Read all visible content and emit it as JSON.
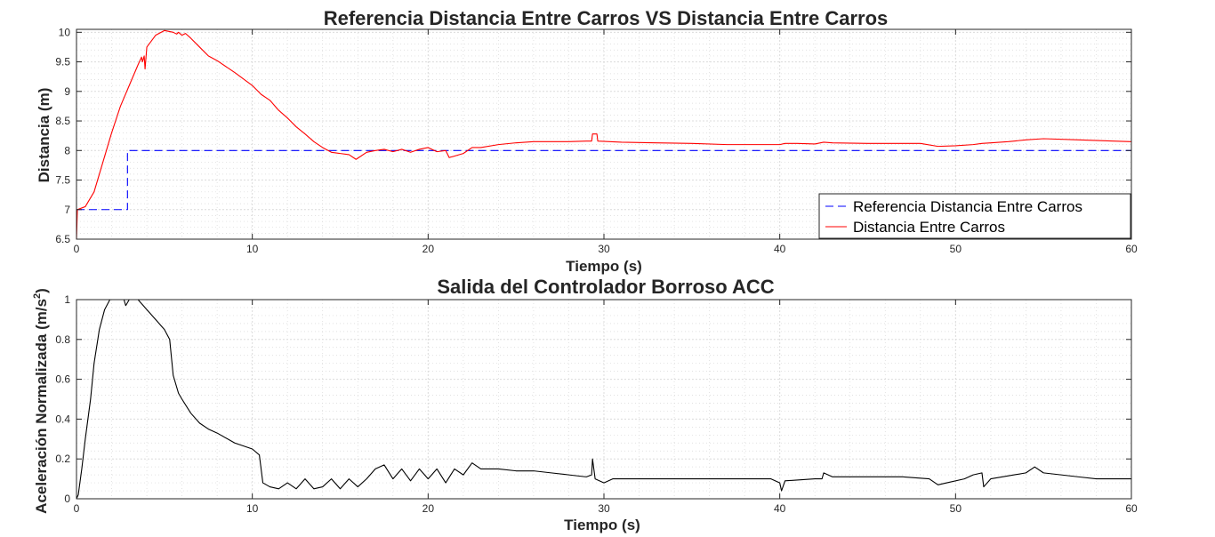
{
  "figure": {
    "background": "#ffffff",
    "axes_color": "#262626",
    "grid_color": "#dcdcdc",
    "minor_grid_color": "#d8d8d8"
  },
  "chart_data": [
    {
      "type": "line",
      "title": "Referencia Distancia Entre Carros VS Distancia Entre Carros",
      "xlabel": "Tiempo (s)",
      "ylabel": "Distancia (m)",
      "xlim": [
        0,
        60
      ],
      "ylim": [
        6.5,
        10.05
      ],
      "xticks": [
        0,
        10,
        20,
        30,
        40,
        50,
        60
      ],
      "yticks": [
        6.5,
        7,
        7.5,
        8,
        8.5,
        9,
        9.5,
        10
      ],
      "grid": true,
      "minor_grid": true,
      "legend": {
        "placement": "bottom-right"
      },
      "series": [
        {
          "name": "Referencia Distancia Entre Carros",
          "color": "#0000ff",
          "dashed": true,
          "points": [
            [
              0,
              7.0
            ],
            [
              2.9,
              7.0
            ],
            [
              2.9,
              8.0
            ],
            [
              60,
              8.0
            ]
          ]
        },
        {
          "name": "Distancia Entre Carros",
          "color": "#ff0000",
          "dashed": false,
          "points": [
            [
              0,
              6.5
            ],
            [
              0.05,
              7.0
            ],
            [
              0.5,
              7.05
            ],
            [
              1.0,
              7.3
            ],
            [
              1.5,
              7.8
            ],
            [
              2.0,
              8.3
            ],
            [
              2.5,
              8.75
            ],
            [
              3.0,
              9.1
            ],
            [
              3.5,
              9.45
            ],
            [
              3.7,
              9.58
            ],
            [
              3.75,
              9.5
            ],
            [
              3.85,
              9.6
            ],
            [
              3.9,
              9.38
            ],
            [
              4.0,
              9.75
            ],
            [
              4.5,
              9.95
            ],
            [
              5.0,
              10.03
            ],
            [
              5.5,
              10.0
            ],
            [
              5.7,
              9.97
            ],
            [
              5.8,
              10.0
            ],
            [
              6.0,
              9.95
            ],
            [
              6.2,
              9.98
            ],
            [
              6.5,
              9.9
            ],
            [
              7.0,
              9.75
            ],
            [
              7.5,
              9.6
            ],
            [
              8.0,
              9.52
            ],
            [
              9.0,
              9.32
            ],
            [
              10.0,
              9.1
            ],
            [
              10.5,
              8.95
            ],
            [
              11.0,
              8.85
            ],
            [
              11.5,
              8.68
            ],
            [
              12.0,
              8.55
            ],
            [
              12.5,
              8.4
            ],
            [
              13.0,
              8.28
            ],
            [
              13.5,
              8.15
            ],
            [
              14.0,
              8.05
            ],
            [
              14.5,
              7.97
            ],
            [
              15.0,
              7.95
            ],
            [
              15.5,
              7.93
            ],
            [
              15.9,
              7.85
            ],
            [
              16.5,
              7.97
            ],
            [
              17.0,
              8.0
            ],
            [
              17.5,
              8.02
            ],
            [
              18.0,
              7.98
            ],
            [
              18.5,
              8.02
            ],
            [
              19.0,
              7.97
            ],
            [
              19.5,
              8.02
            ],
            [
              20.0,
              8.05
            ],
            [
              20.5,
              7.98
            ],
            [
              21.0,
              8.0
            ],
            [
              21.2,
              7.88
            ],
            [
              22.0,
              7.95
            ],
            [
              22.5,
              8.05
            ],
            [
              23.0,
              8.05
            ],
            [
              24.0,
              8.1
            ],
            [
              25.0,
              8.13
            ],
            [
              26.0,
              8.15
            ],
            [
              27.0,
              8.15
            ],
            [
              28.0,
              8.15
            ],
            [
              29.0,
              8.16
            ],
            [
              29.3,
              8.16
            ],
            [
              29.35,
              8.28
            ],
            [
              29.6,
              8.28
            ],
            [
              29.65,
              8.16
            ],
            [
              31.0,
              8.14
            ],
            [
              33.0,
              8.13
            ],
            [
              35.0,
              8.12
            ],
            [
              37.0,
              8.1
            ],
            [
              39.0,
              8.1
            ],
            [
              40.0,
              8.1
            ],
            [
              40.3,
              8.12
            ],
            [
              41.0,
              8.12
            ],
            [
              42.0,
              8.11
            ],
            [
              42.5,
              8.14
            ],
            [
              43.0,
              8.13
            ],
            [
              45.0,
              8.12
            ],
            [
              47.0,
              8.12
            ],
            [
              48.0,
              8.12
            ],
            [
              49.0,
              8.07
            ],
            [
              50.0,
              8.08
            ],
            [
              51.0,
              8.1
            ],
            [
              51.5,
              8.12
            ],
            [
              52.0,
              8.13
            ],
            [
              53.0,
              8.15
            ],
            [
              54.0,
              8.18
            ],
            [
              55.0,
              8.2
            ],
            [
              57.0,
              8.18
            ],
            [
              59.0,
              8.16
            ],
            [
              60.0,
              8.15
            ]
          ]
        }
      ]
    },
    {
      "type": "line",
      "title": "Salida del Controlador Borroso ACC",
      "xlabel": "Tiempo (s)",
      "ylabel": "Aceleración Normalizada (m/s",
      "ylabel_superscript": "2",
      "ylabel_suffix": ")",
      "xlim": [
        0,
        60
      ],
      "ylim": [
        0,
        1
      ],
      "xticks": [
        0,
        10,
        20,
        30,
        40,
        50,
        60
      ],
      "yticks": [
        0,
        0.2,
        0.4,
        0.6,
        0.8,
        1
      ],
      "grid": true,
      "minor_grid": true,
      "series": [
        {
          "color": "#000000",
          "dashed": false,
          "points": [
            [
              0,
              0.0
            ],
            [
              0.1,
              0.02
            ],
            [
              0.3,
              0.15
            ],
            [
              0.5,
              0.3
            ],
            [
              0.8,
              0.5
            ],
            [
              1.0,
              0.68
            ],
            [
              1.3,
              0.85
            ],
            [
              1.6,
              0.95
            ],
            [
              1.9,
              1.0
            ],
            [
              2.5,
              1.0
            ],
            [
              2.7,
              1.0
            ],
            [
              2.8,
              0.97
            ],
            [
              3.0,
              1.0
            ],
            [
              3.5,
              1.0
            ],
            [
              4.0,
              0.95
            ],
            [
              4.5,
              0.9
            ],
            [
              5.0,
              0.85
            ],
            [
              5.3,
              0.8
            ],
            [
              5.5,
              0.62
            ],
            [
              5.8,
              0.53
            ],
            [
              6.0,
              0.5
            ],
            [
              6.5,
              0.43
            ],
            [
              7.0,
              0.38
            ],
            [
              7.5,
              0.35
            ],
            [
              8.0,
              0.33
            ],
            [
              9.0,
              0.28
            ],
            [
              10.0,
              0.25
            ],
            [
              10.4,
              0.22
            ],
            [
              10.6,
              0.08
            ],
            [
              11.0,
              0.06
            ],
            [
              11.5,
              0.05
            ],
            [
              12.0,
              0.08
            ],
            [
              12.5,
              0.05
            ],
            [
              13.0,
              0.1
            ],
            [
              13.5,
              0.05
            ],
            [
              14.0,
              0.06
            ],
            [
              14.5,
              0.1
            ],
            [
              15.0,
              0.05
            ],
            [
              15.5,
              0.1
            ],
            [
              16.0,
              0.06
            ],
            [
              16.5,
              0.1
            ],
            [
              17.0,
              0.15
            ],
            [
              17.5,
              0.17
            ],
            [
              18.0,
              0.1
            ],
            [
              18.5,
              0.15
            ],
            [
              19.0,
              0.09
            ],
            [
              19.5,
              0.15
            ],
            [
              20.0,
              0.1
            ],
            [
              20.5,
              0.15
            ],
            [
              21.0,
              0.08
            ],
            [
              21.5,
              0.15
            ],
            [
              22.0,
              0.12
            ],
            [
              22.5,
              0.18
            ],
            [
              23.0,
              0.15
            ],
            [
              24.0,
              0.15
            ],
            [
              25.0,
              0.14
            ],
            [
              26.0,
              0.14
            ],
            [
              27.0,
              0.13
            ],
            [
              28.0,
              0.12
            ],
            [
              29.0,
              0.11
            ],
            [
              29.3,
              0.12
            ],
            [
              29.35,
              0.2
            ],
            [
              29.5,
              0.1
            ],
            [
              30.0,
              0.08
            ],
            [
              30.5,
              0.1
            ],
            [
              32.0,
              0.1
            ],
            [
              34.0,
              0.1
            ],
            [
              36.0,
              0.1
            ],
            [
              38.0,
              0.1
            ],
            [
              39.5,
              0.1
            ],
            [
              40.0,
              0.08
            ],
            [
              40.1,
              0.04
            ],
            [
              40.3,
              0.09
            ],
            [
              42.0,
              0.1
            ],
            [
              42.4,
              0.1
            ],
            [
              42.5,
              0.13
            ],
            [
              43.0,
              0.11
            ],
            [
              45.0,
              0.11
            ],
            [
              47.0,
              0.11
            ],
            [
              48.5,
              0.1
            ],
            [
              49.0,
              0.07
            ],
            [
              49.5,
              0.08
            ],
            [
              50.5,
              0.1
            ],
            [
              51.0,
              0.12
            ],
            [
              51.5,
              0.13
            ],
            [
              51.6,
              0.06
            ],
            [
              52.0,
              0.1
            ],
            [
              54.0,
              0.13
            ],
            [
              54.5,
              0.16
            ],
            [
              55.0,
              0.13
            ],
            [
              57.0,
              0.11
            ],
            [
              58.0,
              0.1
            ],
            [
              60.0,
              0.1
            ]
          ]
        }
      ]
    }
  ]
}
